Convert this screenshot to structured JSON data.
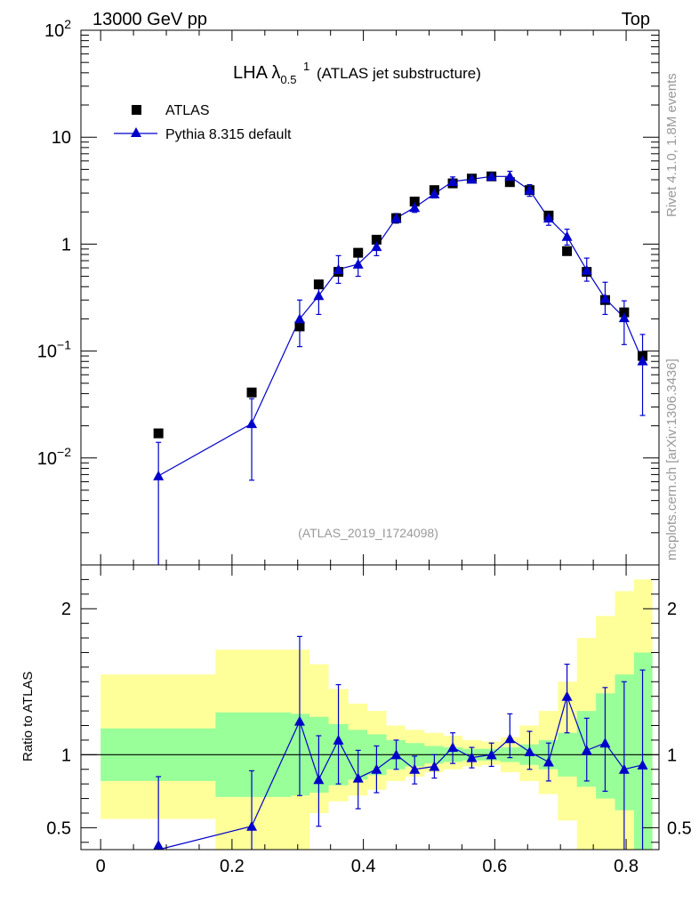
{
  "header": {
    "energy_label": "13000 GeV pp",
    "category_label": "Top"
  },
  "side_labels": {
    "rivet": "Rivet 4.1.0,  1.8M events",
    "mcplots": "mcplots.cern.ch [arXiv:1306.3436]"
  },
  "colors": {
    "mc": "#0000cc",
    "band_inner": "#99ff99",
    "band_outer": "#ffff99",
    "data": "#000000"
  },
  "chart_data": [
    {
      "type": "scatter",
      "name": "main",
      "title_main": "LHA λ",
      "title_sup": "1",
      "title_sub": "0.5",
      "title_rest": "(ATLAS jet substructure)",
      "analysis_tag": "(ATLAS_2019_I1724098)",
      "yscale": "log",
      "xlim": [
        -0.03,
        0.85
      ],
      "ylim": [
        0.001,
        100
      ],
      "y_tick_labels": [
        {
          "value": 100,
          "base": "10",
          "exp": "2"
        },
        {
          "value": 10,
          "base": "10",
          "exp": ""
        },
        {
          "value": 1,
          "base": "1",
          "exp": ""
        },
        {
          "value": 0.1,
          "base": "10",
          "exp": "−1"
        },
        {
          "value": 0.01,
          "base": "10",
          "exp": "−2"
        }
      ],
      "legend": [
        {
          "label": "ATLAS",
          "marker": "square"
        },
        {
          "label": "Pythia 8.315 default",
          "marker": "triangle"
        }
      ],
      "series": [
        {
          "name": "ATLAS",
          "x": [
            0.088,
            0.23,
            0.303,
            0.332,
            0.362,
            0.392,
            0.42,
            0.45,
            0.478,
            0.508,
            0.536,
            0.565,
            0.595,
            0.623,
            0.653,
            0.682,
            0.71,
            0.74,
            0.768,
            0.797,
            0.825
          ],
          "values": [
            0.017,
            0.041,
            0.17,
            0.42,
            0.55,
            0.83,
            1.1,
            1.75,
            2.5,
            3.2,
            3.7,
            4.1,
            4.3,
            3.8,
            3.2,
            1.85,
            0.86,
            0.55,
            0.3,
            0.23,
            0.09
          ]
        },
        {
          "name": "Pythia 8.315 default",
          "x": [
            0.088,
            0.23,
            0.303,
            0.332,
            0.362,
            0.392,
            0.42,
            0.45,
            0.478,
            0.508,
            0.536,
            0.565,
            0.595,
            0.623,
            0.653,
            0.682,
            0.71,
            0.74,
            0.768,
            0.797,
            0.825
          ],
          "values": [
            0.0068,
            0.021,
            0.2,
            0.33,
            0.58,
            0.65,
            0.95,
            1.75,
            2.2,
            2.95,
            3.85,
            4.05,
            4.3,
            4.3,
            3.2,
            1.75,
            1.18,
            0.57,
            0.31,
            0.205,
            0.081
          ],
          "err_low": [
            0.0068,
            0.0148,
            0.09,
            0.11,
            0.15,
            0.15,
            0.17,
            0.18,
            0.22,
            0.25,
            0.4,
            0.3,
            0.35,
            0.5,
            0.4,
            0.25,
            0.2,
            0.12,
            0.09,
            0.09,
            0.056
          ],
          "err_high": [
            0.0072,
            0.0149,
            0.1,
            0.11,
            0.2,
            0.15,
            0.17,
            0.18,
            0.22,
            0.25,
            0.4,
            0.3,
            0.35,
            0.5,
            0.4,
            0.25,
            0.2,
            0.17,
            0.13,
            0.09,
            0.062
          ]
        }
      ]
    },
    {
      "type": "line",
      "name": "ratio",
      "ylabel": "Ratio to ATLAS",
      "xlim": [
        -0.03,
        0.85
      ],
      "ylim": [
        0.35,
        2.3
      ],
      "x_tick_labels": [
        "0",
        "0.2",
        "0.4",
        "0.6",
        "0.8"
      ],
      "y_tick_labels": [
        "0.5",
        "1",
        "2"
      ],
      "bands": {
        "edges": [
          0.0,
          0.175,
          0.29,
          0.318,
          0.347,
          0.377,
          0.406,
          0.435,
          0.464,
          0.493,
          0.522,
          0.551,
          0.58,
          0.609,
          0.638,
          0.667,
          0.696,
          0.725,
          0.754,
          0.783,
          0.812,
          0.84
        ],
        "inner_low": [
          0.82,
          0.71,
          0.72,
          0.74,
          0.79,
          0.83,
          0.86,
          0.9,
          0.92,
          0.94,
          0.95,
          0.96,
          0.96,
          0.95,
          0.93,
          0.9,
          0.85,
          0.78,
          0.7,
          0.62,
          0.35
        ],
        "inner_high": [
          1.18,
          1.29,
          1.28,
          1.26,
          1.21,
          1.17,
          1.14,
          1.1,
          1.08,
          1.06,
          1.05,
          1.04,
          1.04,
          1.05,
          1.07,
          1.1,
          1.15,
          1.3,
          1.42,
          1.55,
          1.7
        ],
        "outer_low": [
          0.56,
          0.35,
          0.35,
          0.6,
          0.68,
          0.72,
          0.76,
          0.82,
          0.85,
          0.88,
          0.9,
          0.92,
          0.93,
          0.88,
          0.82,
          0.73,
          0.55,
          0.35,
          0.35,
          0.35,
          0.35
        ],
        "outer_high": [
          1.55,
          1.72,
          1.72,
          1.62,
          1.45,
          1.35,
          1.3,
          1.2,
          1.17,
          1.15,
          1.13,
          1.1,
          1.09,
          1.12,
          1.2,
          1.3,
          1.5,
          1.8,
          1.95,
          2.12,
          2.2
        ]
      },
      "series": [
        {
          "name": "Pythia 8.315 default / ATLAS",
          "x": [
            0.088,
            0.23,
            0.303,
            0.332,
            0.362,
            0.392,
            0.42,
            0.45,
            0.478,
            0.508,
            0.536,
            0.565,
            0.595,
            0.623,
            0.653,
            0.682,
            0.71,
            0.74,
            0.768,
            0.797,
            0.825
          ],
          "values": [
            0.35,
            0.51,
            1.23,
            0.83,
            1.1,
            0.84,
            0.9,
            1.0,
            0.9,
            0.92,
            1.05,
            0.98,
            1.0,
            1.11,
            1.02,
            0.95,
            1.4,
            1.03,
            1.08,
            0.9,
            0.93
          ],
          "err_low": [
            0.0,
            0.18,
            0.51,
            0.32,
            0.3,
            0.21,
            0.16,
            0.1,
            0.1,
            0.08,
            0.11,
            0.07,
            0.08,
            0.13,
            0.12,
            0.13,
            0.25,
            0.21,
            0.33,
            0.55,
            0.6
          ],
          "err_high": [
            0.5,
            0.38,
            0.58,
            0.3,
            0.38,
            0.19,
            0.16,
            0.1,
            0.09,
            0.08,
            0.1,
            0.07,
            0.08,
            0.17,
            0.14,
            0.13,
            0.22,
            0.22,
            0.38,
            0.6,
            0.65
          ]
        }
      ]
    }
  ]
}
